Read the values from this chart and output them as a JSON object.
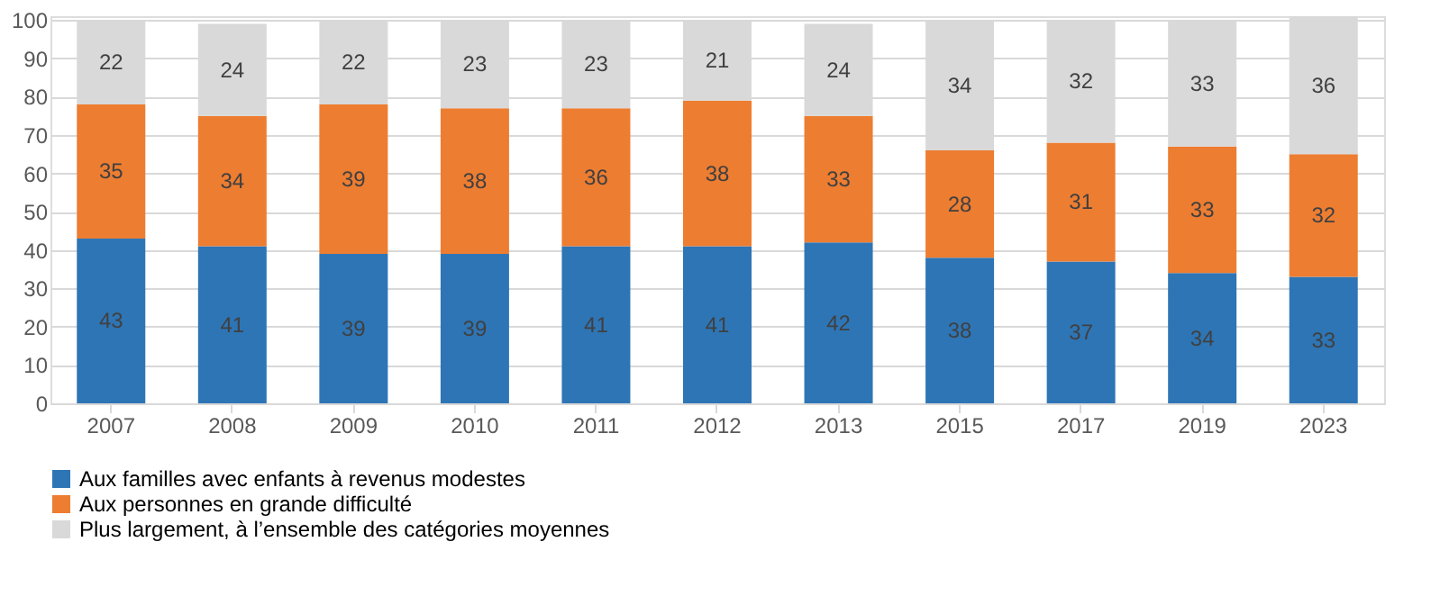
{
  "chart_data": {
    "type": "bar",
    "stacked": true,
    "categories": [
      "2007",
      "2008",
      "2009",
      "2010",
      "2011",
      "2012",
      "2013",
      "2015",
      "2017",
      "2019",
      "2023"
    ],
    "series": [
      {
        "name": "Aux familles avec enfants à revenus modestes",
        "color": "#2e75b6",
        "values": [
          43,
          41,
          39,
          39,
          41,
          41,
          42,
          38,
          37,
          34,
          33
        ]
      },
      {
        "name": "Aux personnes en grande difficulté",
        "color": "#ed7d31",
        "values": [
          35,
          34,
          39,
          38,
          36,
          38,
          33,
          28,
          31,
          33,
          32
        ]
      },
      {
        "name": "Plus largement, à l’ensemble des catégories moyennes",
        "color": "#d9d9d9",
        "values": [
          22,
          24,
          22,
          23,
          23,
          21,
          24,
          34,
          32,
          33,
          36
        ]
      }
    ],
    "ylim": [
      0,
      101
    ],
    "yticks": [
      0,
      10,
      20,
      30,
      40,
      50,
      60,
      70,
      80,
      90,
      100
    ],
    "grid": "y",
    "legend": "bottom",
    "data_labels": true
  }
}
